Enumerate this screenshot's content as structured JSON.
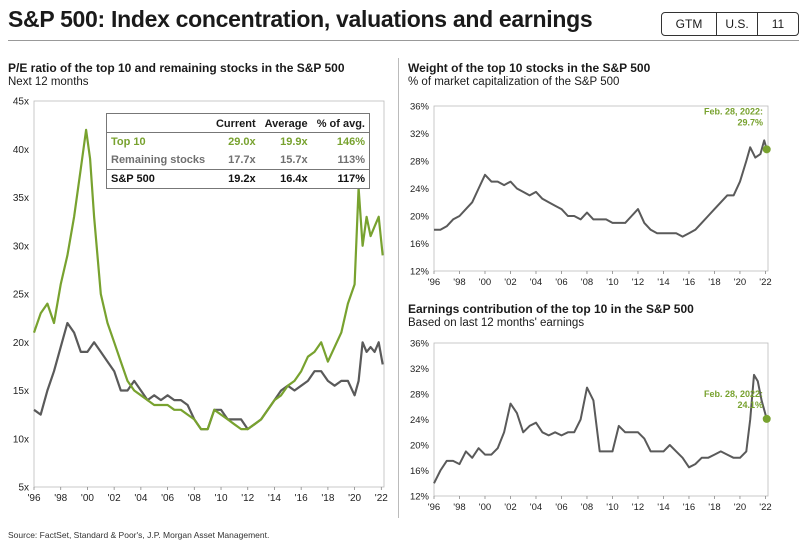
{
  "header": {
    "title": "S&P 500: Index concentration, valuations and earnings",
    "tags": [
      "GTM",
      "U.S.",
      "11"
    ]
  },
  "left_chart": {
    "title": "P/E ratio of the top 10 and remaining stocks in the S&P 500",
    "subtitle": "Next 12 months",
    "table": {
      "headers": [
        "",
        "Current",
        "Average",
        "% of avg."
      ],
      "rows": [
        [
          "Top 10",
          "29.0x",
          "19.9x",
          "146%"
        ],
        [
          "Remaining stocks",
          "17.7x",
          "15.7x",
          "113%"
        ],
        [
          "S&P 500",
          "19.2x",
          "16.4x",
          "117%"
        ]
      ]
    }
  },
  "right_top": {
    "title": "Weight of the top 10 stocks in the S&P 500",
    "subtitle": "% of market capitalization of the S&P 500",
    "annotation_date": "Feb. 28, 2022:",
    "annotation_value": "29.7%"
  },
  "right_bottom": {
    "title": "Earnings contribution of the top 10 in the S&P 500",
    "subtitle": "Based on last 12 months' earnings",
    "annotation_date": "Feb. 28, 2022:",
    "annotation_value": "24.1%"
  },
  "footer": {
    "source": "Source: FactSet, Standard & Poor's, J.P. Morgan Asset Management."
  },
  "colors": {
    "green": "#78a22f",
    "gray": "#5a5a5a"
  },
  "chart_data": [
    {
      "type": "line",
      "ylim": [
        5,
        45
      ],
      "yticks": [
        "5x",
        "10x",
        "15x",
        "20x",
        "25x",
        "30x",
        "35x",
        "40x",
        "45x"
      ],
      "xlim": [
        1996,
        2022.2
      ],
      "xticks": [
        "'96",
        "'98",
        "'00",
        "'02",
        "'04",
        "'06",
        "'08",
        "'10",
        "'12",
        "'14",
        "'16",
        "'18",
        "'20",
        "'22"
      ],
      "series": [
        {
          "name": "Top 10",
          "color": "#78a22f",
          "x": [
            1996,
            1996.5,
            1997,
            1997.5,
            1998,
            1998.5,
            1999,
            1999.5,
            1999.9,
            2000.2,
            2000.5,
            2001,
            2001.5,
            2002,
            2002.5,
            2003,
            2003.5,
            2004,
            2004.5,
            2005,
            2005.5,
            2006,
            2006.5,
            2007,
            2007.5,
            2008,
            2008.5,
            2009,
            2009.5,
            2010,
            2010.5,
            2011,
            2011.5,
            2012,
            2012.5,
            2013,
            2013.5,
            2014,
            2014.5,
            2015,
            2015.5,
            2016,
            2016.5,
            2017,
            2017.5,
            2018,
            2018.5,
            2019,
            2019.5,
            2020,
            2020.3,
            2020.6,
            2020.9,
            2021.2,
            2021.5,
            2021.8,
            2022.1
          ],
          "y": [
            21,
            23,
            24,
            22,
            26,
            29,
            33,
            38,
            42,
            39,
            33,
            25,
            22,
            20,
            18,
            16,
            15,
            14.5,
            14,
            13.5,
            13.5,
            13.5,
            13,
            13,
            12.5,
            12,
            11,
            11,
            13,
            12.5,
            12,
            11.5,
            11,
            11,
            11.5,
            12,
            13,
            14,
            14.5,
            15.5,
            16,
            17,
            18.5,
            19,
            20,
            18,
            19.5,
            21,
            24,
            26,
            36,
            30,
            33,
            31,
            32,
            33,
            29
          ]
        },
        {
          "name": "Remaining stocks",
          "color": "#5a5a5a",
          "x": [
            1996,
            1996.5,
            1997,
            1997.5,
            1998,
            1998.5,
            1999,
            1999.5,
            2000,
            2000.5,
            2001,
            2001.5,
            2002,
            2002.5,
            2003,
            2003.5,
            2004,
            2004.5,
            2005,
            2005.5,
            2006,
            2006.5,
            2007,
            2007.5,
            2008,
            2008.5,
            2009,
            2009.5,
            2010,
            2010.5,
            2011,
            2011.5,
            2012,
            2012.5,
            2013,
            2013.5,
            2014,
            2014.5,
            2015,
            2015.5,
            2016,
            2016.5,
            2017,
            2017.5,
            2018,
            2018.5,
            2019,
            2019.5,
            2020,
            2020.3,
            2020.6,
            2020.9,
            2021.2,
            2021.5,
            2021.8,
            2022.1
          ],
          "y": [
            13,
            12.5,
            15,
            17,
            19.5,
            22,
            21,
            19,
            19,
            20,
            19,
            18,
            17,
            15,
            15,
            16,
            15,
            14,
            14.5,
            14,
            14.5,
            14,
            14,
            13.5,
            12,
            11,
            11,
            13,
            13,
            12,
            12,
            12,
            11,
            11.5,
            12,
            13,
            14,
            15,
            15.5,
            15,
            15.5,
            16,
            17,
            17,
            16,
            15.5,
            16,
            16,
            14.5,
            16,
            20,
            19,
            19.5,
            19,
            20,
            17.7
          ]
        }
      ]
    },
    {
      "type": "line",
      "ylim": [
        12,
        36
      ],
      "yticks": [
        "12%",
        "16%",
        "20%",
        "24%",
        "28%",
        "32%",
        "36%"
      ],
      "xlim": [
        1996,
        2022.2
      ],
      "xticks": [
        "'96",
        "'98",
        "'00",
        "'02",
        "'04",
        "'06",
        "'08",
        "'10",
        "'12",
        "'14",
        "'16",
        "'18",
        "'20",
        "'22"
      ],
      "series": [
        {
          "name": "Top 10 weight",
          "color": "#5a5a5a",
          "x": [
            1996,
            1996.5,
            1997,
            1997.5,
            1998,
            1998.5,
            1999,
            1999.5,
            2000,
            2000.5,
            2001,
            2001.5,
            2002,
            2002.5,
            2003,
            2003.5,
            2004,
            2004.5,
            2005,
            2005.5,
            2006,
            2006.5,
            2007,
            2007.5,
            2008,
            2008.5,
            2009,
            2009.5,
            2010,
            2010.5,
            2011,
            2011.5,
            2012,
            2012.5,
            2013,
            2013.5,
            2014,
            2014.5,
            2015,
            2015.5,
            2016,
            2016.5,
            2017,
            2017.5,
            2018,
            2018.5,
            2019,
            2019.5,
            2020,
            2020.5,
            2020.8,
            2021.2,
            2021.6,
            2021.9,
            2022.1
          ],
          "y": [
            18,
            18,
            18.5,
            19.5,
            20,
            21,
            22,
            24,
            26,
            25,
            25,
            24.5,
            25,
            24,
            23.5,
            23,
            23.5,
            22.5,
            22,
            21.5,
            21,
            20,
            20,
            19.5,
            20.5,
            19.5,
            19.5,
            19.5,
            19,
            19,
            19,
            20,
            21,
            19,
            18,
            17.5,
            17.5,
            17.5,
            17.5,
            17,
            17.5,
            18,
            19,
            20,
            21,
            22,
            23,
            23,
            25,
            28,
            30,
            28.5,
            29,
            31,
            29.7
          ]
        }
      ]
    },
    {
      "type": "line",
      "ylim": [
        12,
        36
      ],
      "yticks": [
        "12%",
        "16%",
        "20%",
        "24%",
        "28%",
        "32%",
        "36%"
      ],
      "xlim": [
        1996,
        2022.2
      ],
      "xticks": [
        "'96",
        "'98",
        "'00",
        "'02",
        "'04",
        "'06",
        "'08",
        "'10",
        "'12",
        "'14",
        "'16",
        "'18",
        "'20",
        "'22"
      ],
      "series": [
        {
          "name": "Top 10 earnings contribution",
          "color": "#5a5a5a",
          "x": [
            1996,
            1996.5,
            1997,
            1997.5,
            1998,
            1998.5,
            1999,
            1999.5,
            2000,
            2000.5,
            2001,
            2001.5,
            2002,
            2002.5,
            2003,
            2003.5,
            2004,
            2004.5,
            2005,
            2005.5,
            2006,
            2006.5,
            2007,
            2007.5,
            2008,
            2008.5,
            2009,
            2009.5,
            2010,
            2010.5,
            2011,
            2011.5,
            2012,
            2012.5,
            2013,
            2013.5,
            2014,
            2014.5,
            2015,
            2015.5,
            2016,
            2016.5,
            2017,
            2017.5,
            2018,
            2018.5,
            2019,
            2019.5,
            2020,
            2020.5,
            2020.8,
            2021.1,
            2021.4,
            2021.7,
            2022.1
          ],
          "y": [
            14,
            16,
            17.5,
            17.5,
            17,
            19,
            18,
            19.5,
            18.5,
            18.5,
            19.5,
            22,
            26.5,
            25,
            22,
            23,
            23.5,
            22,
            21.5,
            22,
            21.5,
            22,
            22,
            24,
            29,
            27,
            19,
            19,
            19,
            23,
            22,
            22,
            22,
            21,
            19,
            19,
            19,
            20,
            19,
            18,
            16.5,
            17,
            18,
            18,
            18.5,
            19,
            18.5,
            18,
            18,
            19,
            24,
            31,
            30,
            27,
            24.1
          ]
        }
      ]
    }
  ]
}
